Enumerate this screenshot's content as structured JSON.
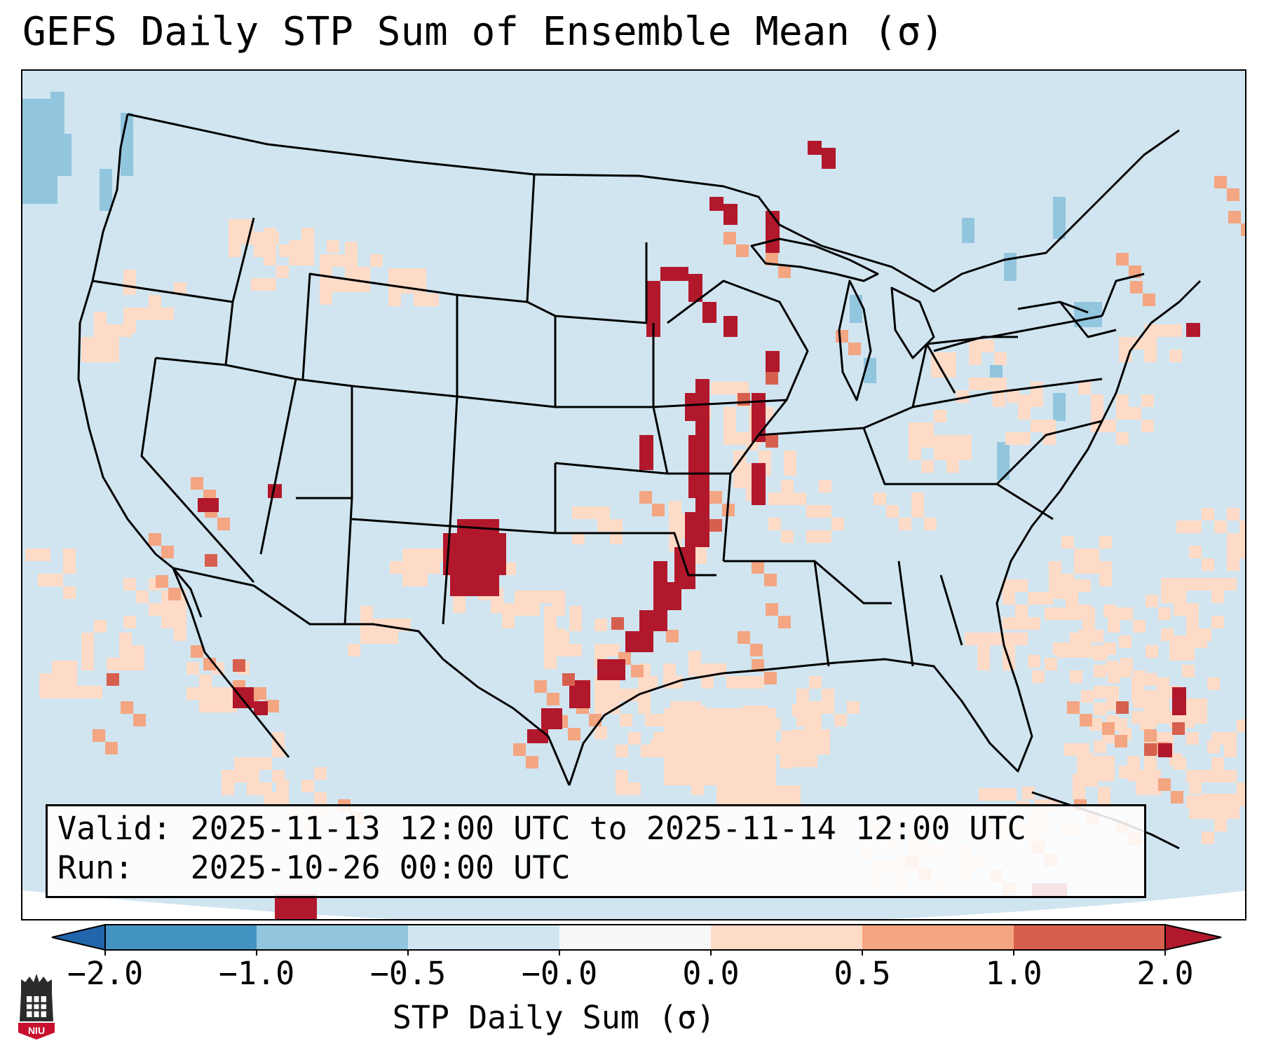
{
  "title": "GEFS Daily STP Sum of Ensemble Mean (σ)",
  "info": {
    "valid_line": "Valid: 2025-11-13 12:00 UTC to 2025-11-14 12:00 UTC",
    "run_line": "Run:   2025-10-26 00:00 UTC"
  },
  "colorbar": {
    "label": "STP Daily Sum (σ)",
    "ticks": [
      "−2.0",
      "−1.0",
      "−0.5",
      "−0.0",
      "0.0",
      "0.5",
      "1.0",
      "2.0"
    ],
    "colors": {
      "below_-2": "#2166ac",
      "-2_to_-1": "#4393c3",
      "-1_to_-0.5": "#92c5de",
      "-0.5_to_0": "#d1e5f0",
      "0_to_0.5": "#fddbc7",
      "0.5_to_1": "#f4a582",
      "1_to_2": "#d6604d",
      "above_2": "#b2182b"
    }
  },
  "logo": {
    "text": "NIU",
    "name": "niu-logo"
  },
  "map": {
    "background_color": "#d1e5f0",
    "region": "Contiguous United States",
    "anomaly_cells_note": "max STP anomaly axis Kansas–Missouri–Iowa–Minnesota into Lake Superior; secondary max eastern New Mexico; positive anomalies Gulf of Mexico and western Atlantic"
  }
}
